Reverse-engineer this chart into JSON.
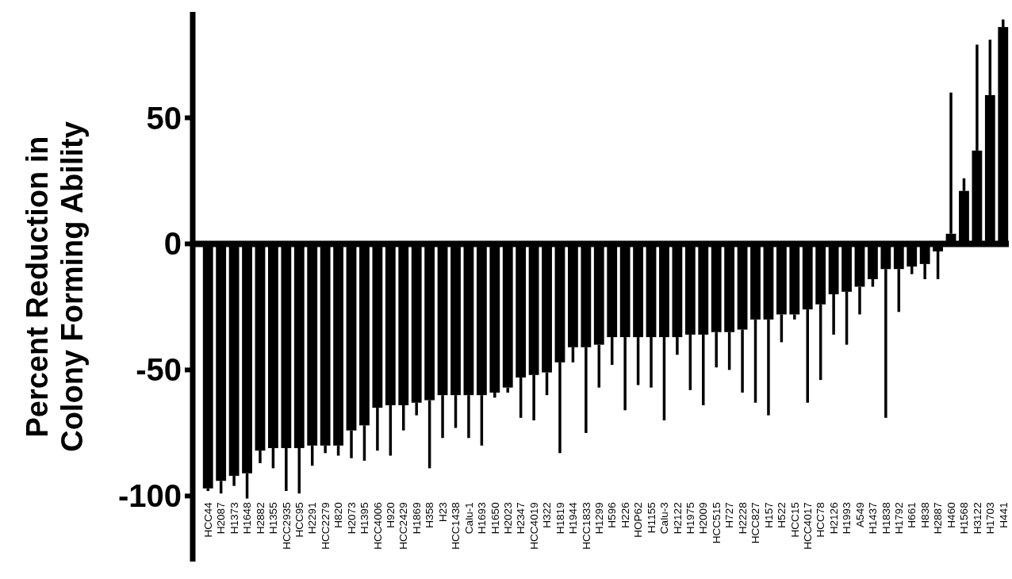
{
  "chart_data": {
    "type": "bar",
    "ylabel": "Percent Reduction in Colony Forming Ability",
    "categories": [
      "HCC44",
      "H2087",
      "H1373",
      "H1648",
      "H2882",
      "H1355",
      "HCC2935",
      "HCC95",
      "H2291",
      "HCC2279",
      "H820",
      "H2073",
      "H1395",
      "HCC4006",
      "H920",
      "HCC2429",
      "H1869",
      "H358",
      "H23",
      "HCC1438",
      "Calu-1",
      "H1693",
      "H1650",
      "H2023",
      "H2347",
      "HCC4019",
      "H322",
      "H1819",
      "H1944",
      "HCC1833",
      "H1299",
      "H596",
      "H226",
      "HOP62",
      "H1155",
      "Calu-3",
      "H2122",
      "H1975",
      "H2009",
      "HCC515",
      "H727",
      "H2228",
      "HCC827",
      "H157",
      "H522",
      "HCC15",
      "HCC4017",
      "HCC78",
      "H2126",
      "H1993",
      "A549",
      "H1437",
      "H1838",
      "H1792",
      "H661",
      "H838",
      "H2887",
      "H460",
      "H1568",
      "H3122",
      "H1703",
      "H441"
    ],
    "values": [
      -97,
      -94,
      -92,
      -91,
      -82,
      -81,
      -81,
      -81,
      -80,
      -80,
      -80,
      -74,
      -72,
      -65,
      -64,
      -64,
      -63,
      -62,
      -60,
      -60,
      -60,
      -60,
      -59,
      -57,
      -53,
      -52,
      -51,
      -47,
      -41,
      -41,
      -40,
      -37,
      -37,
      -37,
      -37,
      -37,
      -37,
      -36,
      -36,
      -35,
      -35,
      -34,
      -30,
      -30,
      -28,
      -28,
      -26,
      -24,
      -20,
      -19,
      -17,
      -14,
      -10,
      -10,
      -9,
      -8,
      -3,
      4,
      21,
      37,
      59,
      86
    ],
    "errors": [
      [
        -98,
        -97
      ],
      [
        -99,
        -94
      ],
      [
        -96,
        -92
      ],
      [
        -101,
        -91
      ],
      [
        -87,
        -82
      ],
      [
        -89,
        -81
      ],
      [
        -98,
        -81
      ],
      [
        -99,
        -81
      ],
      [
        -88,
        -80
      ],
      [
        -83,
        -80
      ],
      [
        -84,
        -80
      ],
      [
        -85,
        -74
      ],
      [
        -86,
        -72
      ],
      [
        -82,
        -65
      ],
      [
        -84,
        -64
      ],
      [
        -74,
        -64
      ],
      [
        -68,
        -63
      ],
      [
        -89,
        -62
      ],
      [
        -77,
        -60
      ],
      [
        -73,
        -60
      ],
      [
        -77,
        -60
      ],
      [
        -80,
        -60
      ],
      [
        -61,
        -59
      ],
      [
        -59,
        -57
      ],
      [
        -69,
        -53
      ],
      [
        -70,
        -52
      ],
      [
        -60,
        -51
      ],
      [
        -83,
        -47
      ],
      [
        -47,
        -41
      ],
      [
        -75,
        -41
      ],
      [
        -57,
        -40
      ],
      [
        -48,
        -37
      ],
      [
        -66,
        -37
      ],
      [
        -56,
        -37
      ],
      [
        -57,
        -37
      ],
      [
        -70,
        -37
      ],
      [
        -44,
        -37
      ],
      [
        -58,
        -36
      ],
      [
        -64,
        -36
      ],
      [
        -49,
        -35
      ],
      [
        -50,
        -35
      ],
      [
        -59,
        -34
      ],
      [
        -63,
        -30
      ],
      [
        -68,
        -30
      ],
      [
        -39,
        -28
      ],
      [
        -30,
        -28
      ],
      [
        -63,
        -26
      ],
      [
        -54,
        -24
      ],
      [
        -36,
        -20
      ],
      [
        -40,
        -19
      ],
      [
        -28,
        -17
      ],
      [
        -17,
        -14
      ],
      [
        -69,
        -10
      ],
      [
        -27,
        -10
      ],
      [
        -12,
        -9
      ],
      [
        -14,
        -8
      ],
      [
        -14,
        -3
      ],
      [
        4,
        60
      ],
      [
        21,
        26
      ],
      [
        37,
        79
      ],
      [
        59,
        81
      ],
      [
        86,
        89
      ]
    ],
    "color": "#000000",
    "ylim": [
      -126,
      92
    ],
    "yticks": [
      -100,
      -50,
      0,
      50
    ]
  }
}
